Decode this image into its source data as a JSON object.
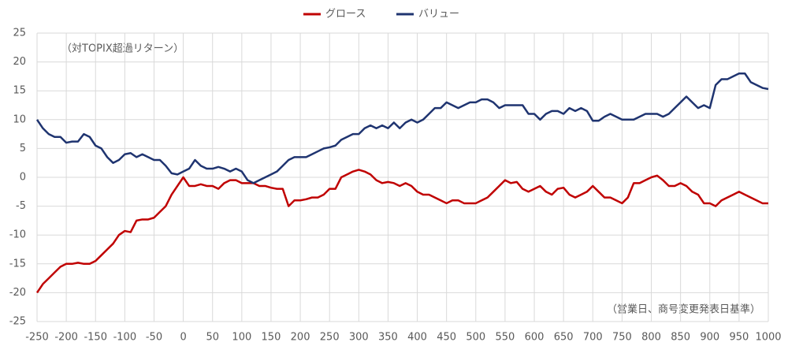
{
  "chart_data": {
    "type": "line",
    "annotations": [
      "（対TOPIX超過リターン）",
      "（営業日、商号変更発表日基準）"
    ],
    "x": [
      -250,
      -240,
      -230,
      -220,
      -210,
      -200,
      -190,
      -180,
      -170,
      -160,
      -150,
      -140,
      -130,
      -120,
      -110,
      -100,
      -90,
      -80,
      -70,
      -60,
      -50,
      -40,
      -30,
      -20,
      -10,
      0,
      10,
      20,
      30,
      40,
      50,
      60,
      70,
      80,
      90,
      100,
      110,
      120,
      130,
      140,
      150,
      160,
      170,
      180,
      190,
      200,
      210,
      220,
      230,
      240,
      250,
      260,
      270,
      280,
      290,
      300,
      310,
      320,
      330,
      340,
      350,
      360,
      370,
      380,
      390,
      400,
      410,
      420,
      430,
      440,
      450,
      460,
      470,
      480,
      490,
      500,
      510,
      520,
      530,
      540,
      550,
      560,
      570,
      580,
      590,
      600,
      610,
      620,
      630,
      640,
      650,
      660,
      670,
      680,
      690,
      700,
      710,
      720,
      730,
      740,
      750,
      760,
      770,
      780,
      790,
      800,
      810,
      820,
      830,
      840,
      850,
      860,
      870,
      880,
      890,
      900,
      910,
      920,
      930,
      940,
      950,
      960,
      970,
      980,
      990,
      1000
    ],
    "series": [
      {
        "name": "グロース",
        "color": "#c00000",
        "values": [
          -20,
          -18.5,
          -17.5,
          -16.5,
          -15.5,
          -15,
          -15,
          -14.8,
          -15,
          -15,
          -14.5,
          -13.5,
          -12.5,
          -11.5,
          -10,
          -9.3,
          -9.5,
          -7.5,
          -7.3,
          -7.3,
          -7,
          -6,
          -5,
          -3,
          -1.5,
          0,
          -1.5,
          -1.5,
          -1.2,
          -1.5,
          -1.5,
          -2,
          -1,
          -0.5,
          -0.5,
          -1,
          -1,
          -1,
          -1.5,
          -1.5,
          -1.8,
          -2,
          -2,
          -5,
          -4,
          -4,
          -3.8,
          -3.5,
          -3.5,
          -3,
          -2,
          -2,
          0,
          0.5,
          1,
          1.3,
          1,
          0.5,
          -0.5,
          -1,
          -0.8,
          -1,
          -1.5,
          -1,
          -1.5,
          -2.5,
          -3,
          -3,
          -3.5,
          -4,
          -4.5,
          -4,
          -4,
          -4.5,
          -4.5,
          -4.5,
          -4,
          -3.5,
          -2.5,
          -1.5,
          -0.5,
          -1,
          -0.8,
          -2,
          -2.5,
          -2,
          -1.5,
          -2.5,
          -3,
          -2,
          -1.8,
          -3,
          -3.5,
          -3,
          -2.5,
          -1.5,
          -2.5,
          -3.5,
          -3.5,
          -4,
          -4.5,
          -3.5,
          -1,
          -1,
          -0.5,
          0,
          0.3,
          -0.5,
          -1.5,
          -1.5,
          -1,
          -1.5,
          -2.5,
          -3,
          -4.5,
          -4.5,
          -5,
          -4,
          -3.5,
          -3,
          -2.5,
          -3,
          -3.5,
          -4,
          -4.5,
          -4.5
        ]
      },
      {
        "name": "バリュー",
        "color": "#1f3470",
        "values": [
          10,
          8.5,
          7.5,
          7,
          7,
          6,
          6.2,
          6.2,
          7.5,
          7,
          5.5,
          5,
          3.5,
          2.5,
          3,
          4,
          4.2,
          3.5,
          4,
          3.5,
          3,
          3,
          2,
          0.7,
          0.5,
          1,
          1.5,
          3,
          2,
          1.5,
          1.5,
          1.8,
          1.5,
          1,
          1.5,
          1,
          -0.5,
          -1,
          -0.5,
          0,
          0.5,
          1,
          2,
          3,
          3.5,
          3.5,
          3.5,
          4,
          4.5,
          5,
          5.2,
          5.5,
          6.5,
          7,
          7.5,
          7.5,
          8.5,
          9,
          8.5,
          9,
          8.5,
          9.5,
          8.5,
          9.5,
          10,
          9.5,
          10,
          11,
          12,
          12,
          13,
          12.5,
          12,
          12.5,
          13,
          13,
          13.5,
          13.5,
          13,
          12,
          12.5,
          12.5,
          12.5,
          12.5,
          11,
          11,
          10,
          11,
          11.5,
          11.5,
          11,
          12,
          11.5,
          12,
          11.5,
          9.8,
          9.8,
          10.5,
          11,
          10.5,
          10,
          10,
          10,
          10.5,
          11,
          11,
          11,
          10.5,
          11,
          12,
          13,
          14,
          13,
          12,
          12.5,
          12,
          16,
          17,
          17,
          17.5,
          18,
          18,
          16.5,
          16,
          15.5,
          15.3
        ]
      }
    ],
    "xlim": [
      -250,
      1000
    ],
    "xticks": [
      -250,
      -200,
      -150,
      -100,
      -50,
      0,
      50,
      100,
      150,
      200,
      250,
      300,
      350,
      400,
      450,
      500,
      550,
      600,
      650,
      700,
      750,
      800,
      850,
      900,
      950,
      1000
    ],
    "ylim": [
      -25,
      25
    ],
    "yticks": [
      -25,
      -20,
      -15,
      -10,
      -5,
      0,
      5,
      10,
      15,
      20,
      25
    ],
    "grid": true,
    "legend": "top"
  }
}
